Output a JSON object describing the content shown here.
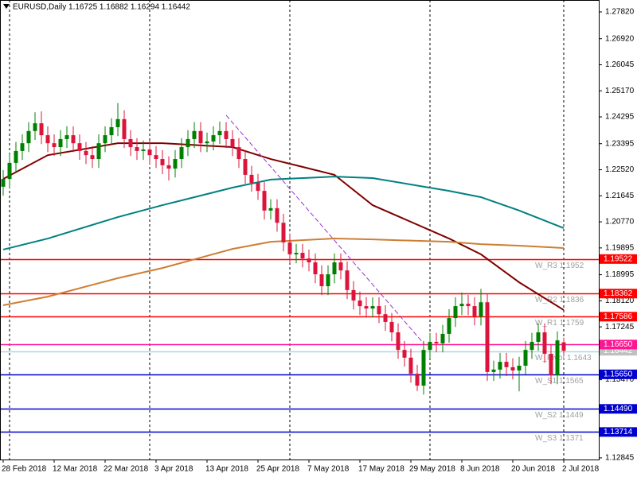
{
  "chart_data": {
    "type": "candlestick",
    "title": "EURUSD,Daily  1.16725 1.16882 1.16294 1.16442",
    "categories": [
      "28 Feb 2018",
      null,
      null,
      null,
      null,
      null,
      null,
      null,
      "12 Mar 2018",
      null,
      null,
      null,
      null,
      null,
      null,
      null,
      "22 Mar 2018",
      null,
      null,
      null,
      null,
      null,
      null,
      null,
      "3 Apr 2018",
      null,
      null,
      null,
      null,
      null,
      null,
      null,
      "13 Apr 2018",
      null,
      null,
      null,
      null,
      null,
      null,
      null,
      "25 Apr 2018",
      null,
      null,
      null,
      null,
      null,
      null,
      null,
      "7 May 2018",
      null,
      null,
      null,
      null,
      null,
      null,
      null,
      "17 May 2018",
      null,
      null,
      null,
      null,
      null,
      null,
      null,
      "29 May 2018",
      null,
      null,
      null,
      null,
      null,
      null,
      null,
      "8 Jun 2018",
      null,
      null,
      null,
      null,
      null,
      null,
      null,
      "20 Jun 2018",
      null,
      null,
      null,
      null,
      null,
      null,
      null,
      "2 Jul 2018"
    ],
    "open": [
      1.2195,
      1.2221,
      1.2275,
      1.2315,
      1.2341,
      1.2382,
      1.2408,
      1.2368,
      1.2341,
      1.2328,
      1.2355,
      1.2368,
      1.2341,
      1.2315,
      1.2301,
      1.2288,
      1.2341,
      1.2368,
      1.2395,
      1.2422,
      1.2355,
      1.2328,
      1.2315,
      1.232,
      1.2301,
      1.2288,
      1.2267,
      1.2256,
      1.2288,
      1.2328,
      1.2355,
      1.2382,
      1.2341,
      1.2347,
      1.2368,
      1.2382,
      1.2355,
      1.2328,
      1.2288,
      1.2235,
      1.2208,
      1.2181,
      1.2115,
      1.2123,
      1.2074,
      1.2008,
      1.1968,
      1.1973,
      1.1954,
      1.1941,
      1.1901,
      1.1861,
      1.1901,
      1.1941,
      1.1914,
      1.1848,
      1.1813,
      1.1794,
      1.1786,
      1.1794,
      1.1767,
      1.1741,
      1.1706,
      1.1647,
      1.1621,
      1.1567,
      1.1527,
      1.1647,
      1.1674,
      1.1669,
      1.1701,
      1.1754,
      1.1794,
      1.1802,
      1.1794,
      1.1759,
      1.1807,
      1.1573,
      1.1581,
      1.1607,
      1.1589,
      1.1578,
      1.1594,
      1.1647,
      1.1674,
      1.1706,
      1.1634,
      1.1562,
      1.16725
    ],
    "high": [
      1.2251,
      1.2305,
      1.2345,
      1.2371,
      1.2412,
      1.2445,
      1.2448,
      1.2398,
      1.2371,
      1.2385,
      1.2398,
      1.2398,
      1.2371,
      1.2345,
      1.2331,
      1.2371,
      1.2398,
      1.2425,
      1.2476,
      1.2452,
      1.2385,
      1.2358,
      1.235,
      1.235,
      1.2331,
      1.2318,
      1.2297,
      1.2318,
      1.2358,
      1.2385,
      1.2412,
      1.2412,
      1.2377,
      1.2398,
      1.2414,
      1.2412,
      1.2385,
      1.2358,
      1.2318,
      1.2265,
      1.2238,
      1.2211,
      1.2153,
      1.2153,
      1.2104,
      1.2038,
      1.2003,
      1.2003,
      1.1984,
      1.1971,
      1.1931,
      1.1931,
      1.1971,
      1.1971,
      1.1944,
      1.1878,
      1.1843,
      1.1824,
      1.1824,
      1.1824,
      1.1797,
      1.1771,
      1.1736,
      1.1677,
      1.1651,
      1.1597,
      1.1677,
      1.1704,
      1.1704,
      1.1731,
      1.1784,
      1.1824,
      1.184,
      1.1832,
      1.1824,
      1.1852,
      1.1837,
      1.1611,
      1.1637,
      1.1637,
      1.1619,
      1.1624,
      1.1677,
      1.1704,
      1.1736,
      1.1736,
      1.1664,
      1.1709,
      1.16882
    ],
    "low": [
      1.2165,
      1.2191,
      1.2245,
      1.2285,
      1.2311,
      1.2352,
      1.2338,
      1.2311,
      1.2298,
      1.2298,
      1.2325,
      1.2311,
      1.2285,
      1.2271,
      1.2258,
      1.2258,
      1.2311,
      1.2338,
      1.2365,
      1.2325,
      1.2298,
      1.2285,
      1.2285,
      1.2271,
      1.2258,
      1.2237,
      1.2216,
      1.2226,
      1.2258,
      1.2298,
      1.2325,
      1.2311,
      1.2311,
      1.2317,
      1.2338,
      1.2325,
      1.2298,
      1.2258,
      1.2205,
      1.2178,
      1.2151,
      1.2085,
      1.2085,
      1.2044,
      1.1978,
      1.1938,
      1.1938,
      1.1924,
      1.1911,
      1.1871,
      1.1831,
      1.1831,
      1.1871,
      1.1884,
      1.1818,
      1.1783,
      1.1764,
      1.1756,
      1.1756,
      1.1737,
      1.1711,
      1.1676,
      1.1617,
      1.1591,
      1.1537,
      1.1509,
      1.1497,
      1.1617,
      1.1639,
      1.1639,
      1.1671,
      1.1724,
      1.1764,
      1.1764,
      1.1729,
      1.1729,
      1.1543,
      1.1543,
      1.1551,
      1.1559,
      1.1548,
      1.1508,
      1.1564,
      1.1617,
      1.1644,
      1.1604,
      1.1532,
      1.1532,
      1.16294
    ],
    "close": [
      1.2221,
      1.2275,
      1.2315,
      1.2341,
      1.2382,
      1.2408,
      1.2368,
      1.2341,
      1.2328,
      1.2355,
      1.2368,
      1.2341,
      1.2315,
      1.2301,
      1.2288,
      1.2341,
      1.2368,
      1.2395,
      1.2422,
      1.2355,
      1.2328,
      1.2315,
      1.232,
      1.2301,
      1.2288,
      1.2267,
      1.2256,
      1.2288,
      1.2328,
      1.2355,
      1.2382,
      1.2341,
      1.2347,
      1.2368,
      1.2382,
      1.2355,
      1.2328,
      1.2288,
      1.2235,
      1.2208,
      1.2181,
      1.2115,
      1.2123,
      1.2074,
      1.2008,
      1.1968,
      1.1973,
      1.1954,
      1.1941,
      1.1901,
      1.1861,
      1.1901,
      1.1941,
      1.1914,
      1.1848,
      1.1813,
      1.1794,
      1.1786,
      1.1794,
      1.1767,
      1.1741,
      1.1706,
      1.1647,
      1.1621,
      1.1567,
      1.1527,
      1.1647,
      1.1674,
      1.1669,
      1.1701,
      1.1754,
      1.1794,
      1.1802,
      1.1794,
      1.1759,
      1.1807,
      1.1573,
      1.1581,
      1.1607,
      1.1589,
      1.1578,
      1.1594,
      1.1647,
      1.1674,
      1.1706,
      1.1634,
      1.1562,
      1.1679,
      1.16442
    ],
    "up_color": "#008000",
    "down_color": "#dc143c",
    "series": [
      {
        "color": "#800000",
        "x": [
          0,
          7,
          18,
          25,
          36,
          42,
          52,
          58,
          70,
          75,
          81,
          88
        ],
        "values": [
          1.2221,
          1.2301,
          1.2341,
          1.2341,
          1.2328,
          1.2288,
          1.2235,
          1.2133,
          1.2021,
          1.1968,
          1.1874,
          1.1781
        ]
      },
      {
        "color": "#008080",
        "x": [
          0,
          7,
          18,
          25,
          36,
          42,
          52,
          58,
          70,
          75,
          81,
          88
        ],
        "values": [
          1.1984,
          1.2021,
          1.2093,
          1.2133,
          1.2192,
          1.2219,
          1.2229,
          1.2224,
          1.2181,
          1.216,
          1.2115,
          1.2056
        ]
      },
      {
        "color": "#cd7f32",
        "x": [
          0,
          7,
          18,
          25,
          36,
          42,
          52,
          58,
          70,
          75,
          81,
          88
        ],
        "values": [
          1.1797,
          1.1826,
          1.1888,
          1.1922,
          1.1986,
          1.201,
          1.2021,
          1.2018,
          1.201,
          1.2002,
          1.1997,
          1.1989
        ]
      }
    ],
    "trendline": {
      "color": "#9932cc",
      "x": [
        35,
        66
      ],
      "values": [
        1.2435,
        1.1669
      ]
    },
    "levels": [
      {
        "value": 1.19522,
        "box_label": "1.19522",
        "text": "W_R3 1.1952",
        "color": "#ff0000"
      },
      {
        "value": 1.18362,
        "box_label": "1.18362",
        "text": "W_R2 1.1836",
        "color": "#ff0000"
      },
      {
        "value": 1.17586,
        "box_label": "1.17586",
        "text": "W_R1 1.1759",
        "color": "#ff0000"
      },
      {
        "value": 1.1665,
        "box_label": "1.16650",
        "color": "#ff1493"
      },
      {
        "value": 1.1643,
        "text": "W_Pivot 1.1643",
        "color": "#add8e6"
      },
      {
        "value": 1.1565,
        "box_label": "1.15650",
        "text": "W_S1 1.1565",
        "color": "#0000cd"
      },
      {
        "value": 1.1449,
        "box_label": "1.14490",
        "text": "W_S2 1.1449",
        "color": "#0000cd"
      },
      {
        "value": 1.13714,
        "box_label": "1.13714",
        "text": "W_S3 1.1371",
        "color": "#0000cd"
      }
    ],
    "bid": {
      "value": 1.16442,
      "color": "#c0c0c0"
    },
    "ylim": [
      1.1279,
      1.2822
    ],
    "yticks": [
      {
        "value": 1.2782,
        "label": "1.27820"
      },
      {
        "value": 1.2692,
        "label": "1.26920"
      },
      {
        "value": 1.26045,
        "label": "1.26045"
      },
      {
        "value": 1.2517,
        "label": "1.25170"
      },
      {
        "value": 1.24295,
        "label": "1.24295"
      },
      {
        "value": 1.23395,
        "label": "1.23395"
      },
      {
        "value": 1.2252,
        "label": "1.22520"
      },
      {
        "value": 1.21645,
        "label": "1.21645"
      },
      {
        "value": 1.2077,
        "label": "1.20770"
      },
      {
        "value": 1.19895,
        "label": "1.19895"
      },
      {
        "value": 1.18995,
        "label": "1.18995"
      },
      {
        "value": 1.1812,
        "label": "1.18120"
      },
      {
        "value": 1.17245,
        "label": "1.17245"
      },
      {
        "value": 1.1547,
        "label": "1.15470"
      },
      {
        "value": 1.12845,
        "label": "1.12845"
      }
    ]
  }
}
